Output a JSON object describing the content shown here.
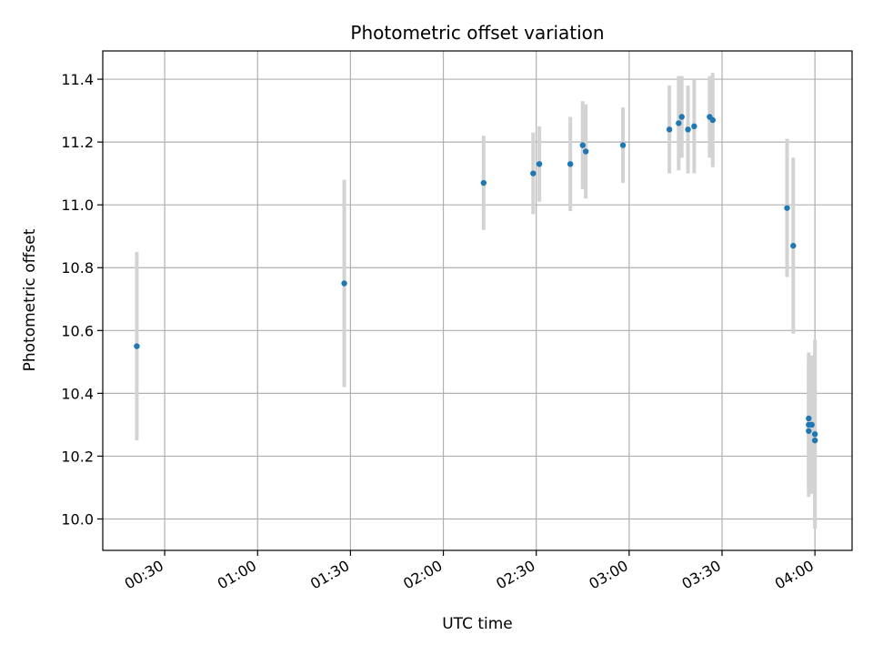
{
  "chart_data": {
    "type": "scatter",
    "title": "Photometric offset variation",
    "xlabel": "UTC time",
    "ylabel": "Photometric offset",
    "x_axis_type": "time",
    "xlim": [
      "00:10",
      "04:12"
    ],
    "ylim": [
      9.9,
      11.49
    ],
    "xticks": [
      "00:30",
      "01:00",
      "01:30",
      "02:00",
      "02:30",
      "03:00",
      "03:30",
      "04:00"
    ],
    "yticks": [
      10.0,
      10.2,
      10.4,
      10.6,
      10.8,
      11.0,
      11.2,
      11.4
    ],
    "grid": true,
    "point_color": "#1f77b4",
    "errorbar_color": "#d3d3d3",
    "points": [
      {
        "x": "00:21",
        "y": 10.55,
        "yerr": 0.3
      },
      {
        "x": "01:28",
        "y": 10.75,
        "yerr": 0.33
      },
      {
        "x": "02:13",
        "y": 11.07,
        "yerr": 0.15
      },
      {
        "x": "02:29",
        "y": 11.1,
        "yerr": 0.13
      },
      {
        "x": "02:31",
        "y": 11.13,
        "yerr": 0.12
      },
      {
        "x": "02:41",
        "y": 11.13,
        "yerr": 0.15
      },
      {
        "x": "02:45",
        "y": 11.19,
        "yerr": 0.14
      },
      {
        "x": "02:46",
        "y": 11.17,
        "yerr": 0.15
      },
      {
        "x": "02:58",
        "y": 11.19,
        "yerr": 0.12
      },
      {
        "x": "03:13",
        "y": 11.24,
        "yerr": 0.14
      },
      {
        "x": "03:16",
        "y": 11.26,
        "yerr": 0.15
      },
      {
        "x": "03:17",
        "y": 11.28,
        "yerr": 0.13
      },
      {
        "x": "03:19",
        "y": 11.24,
        "yerr": 0.14
      },
      {
        "x": "03:21",
        "y": 11.25,
        "yerr": 0.15
      },
      {
        "x": "03:26",
        "y": 11.28,
        "yerr": 0.13
      },
      {
        "x": "03:27",
        "y": 11.27,
        "yerr": 0.15
      },
      {
        "x": "03:51",
        "y": 10.99,
        "yerr": 0.22
      },
      {
        "x": "03:53",
        "y": 10.87,
        "yerr": 0.28
      },
      {
        "x": "03:58",
        "y": 10.28,
        "yerr": 0.21
      },
      {
        "x": "03:58",
        "y": 10.3,
        "yerr": 0.21
      },
      {
        "x": "03:58",
        "y": 10.32,
        "yerr": 0.21
      },
      {
        "x": "03:59",
        "y": 10.3,
        "yerr": 0.22
      },
      {
        "x": "04:00",
        "y": 10.25,
        "yerr": 0.28
      },
      {
        "x": "04:00",
        "y": 10.27,
        "yerr": 0.3
      }
    ]
  }
}
